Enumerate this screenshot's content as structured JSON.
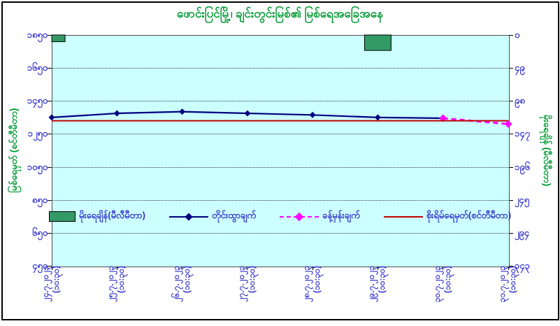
{
  "title": "ဖောင်းပြင်မြို့၊ ချင်းတွင်းမြစ်၏ မြစ်ရေအခြေအနေ",
  "colors": {
    "title_green": "#009933",
    "tick_label_blue": "#3333CC",
    "plot_background": "#CCFFFF",
    "bar_green": "#339966",
    "observed_navy": "#000080",
    "forecast_magenta": "#FF00FF",
    "danger_red": "#C00000"
  },
  "chart_data": {
    "type": "combo",
    "title": "ဖောင်းပြင်မြို့၊ ချင်းတွင်းမြစ်၏ မြစ်ရေအခြေအနေ",
    "grid": "horizontal-dotted",
    "legend_position": "inside-bottom",
    "categories": [
      {
        "date": "၂၄.၇.၂၀၂၃",
        "time": "(၁၀:၃၀)"
      },
      {
        "date": "၂၅.၇.၂၀၂၃",
        "time": "(၁၀:၃၀)"
      },
      {
        "date": "၂၆.၇.၂၀၂၃",
        "time": "(၁၀:၃၀)"
      },
      {
        "date": "၂၇.၇.၂၀၂၃",
        "time": "(၁၀:၃၀)"
      },
      {
        "date": "၂၈.၇.၂၀၂၃",
        "time": "(၁၀:၃၀)"
      },
      {
        "date": "၂၉.၇.၂၀၂၃",
        "time": "(၁၀:၃၀)"
      },
      {
        "date": "၃၀.၇.၂၀၂၃",
        "time": "(၁၀:၃၀)"
      },
      {
        "date": "၃၁.၇.၂၀၂၃",
        "time": "(၁၀:၃၀)"
      }
    ],
    "left_axis": {
      "title": "မြစ်ရေမှတ် (စင်တီမီတာ)",
      "unit": "cm",
      "max": 1850,
      "min": 450,
      "step": 200,
      "tick_labels": [
        "၁၈၅၀",
        "၁၆၅၀",
        "၁၄၅၀",
        "၁၂၅၀",
        "၁၀၅၀",
        "၈၅၀",
        "၆၅၀",
        "၄၅၀"
      ]
    },
    "right_axis": {
      "title": "မိုးရေချိန် (မီလီမီတာ)",
      "unit": "mm",
      "min": 0,
      "max": 343,
      "step": 49,
      "direction": "increases-downward",
      "tick_labels": [
        "၀",
        "၄၉",
        "၉၈",
        "၁၄၇",
        "၁၉၆",
        "၂၄၅",
        "၂၉၄",
        "၃၄၃"
      ]
    },
    "series": [
      {
        "name": "မိုးရေချိန်(မီလီမီတာ)",
        "type": "bar",
        "axis": "right",
        "color": "#339966",
        "values": [
          10,
          null,
          null,
          null,
          null,
          23,
          null,
          null
        ]
      },
      {
        "name": "တိုင်းထွာချက်",
        "type": "line",
        "axis": "left",
        "color": "#000080",
        "marker": "diamond",
        "values": [
          1350,
          1375,
          1385,
          1375,
          1365,
          1350,
          1345,
          null
        ]
      },
      {
        "name": "ခန့်မှန်းချက်",
        "type": "line",
        "axis": "left",
        "color": "#FF00FF",
        "dash": true,
        "marker": "diamond",
        "values": [
          null,
          null,
          null,
          null,
          null,
          null,
          1345,
          1310
        ]
      },
      {
        "name": "စိုးရိမ်ရေမှတ်(စင်တီမီတာ)",
        "type": "line",
        "axis": "left",
        "color": "#C00000",
        "values": [
          1330,
          1330,
          1330,
          1330,
          1330,
          1330,
          1330,
          1330
        ]
      }
    ]
  }
}
